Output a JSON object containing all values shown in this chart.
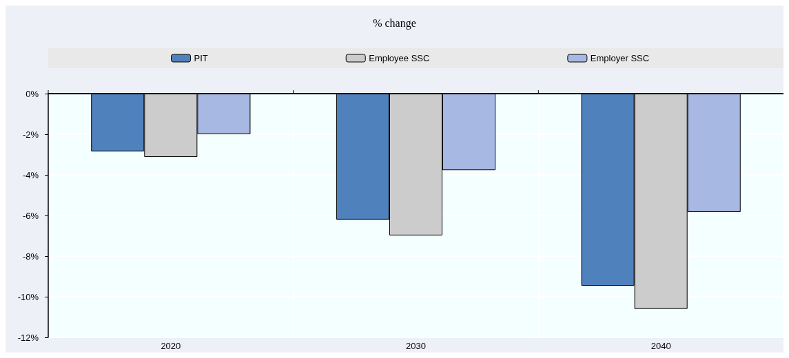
{
  "chart_data": {
    "type": "bar",
    "title": "% change",
    "categories": [
      "2020",
      "2030",
      "2040"
    ],
    "series": [
      {
        "name": "PIT",
        "color": "#4f81bd",
        "values": [
          -2.84,
          -6.2,
          -9.46
        ]
      },
      {
        "name": "Employee SSC",
        "color": "#cccccc",
        "values": [
          -3.12,
          -6.98,
          -10.6
        ]
      },
      {
        "name": "Employer SSC",
        "color": "#a7b9e3",
        "values": [
          -2.0,
          -3.77,
          -5.83
        ]
      }
    ],
    "ylim": [
      -12,
      0
    ],
    "yticks": [
      {
        "value": -12,
        "label": "-12%"
      },
      {
        "value": -10,
        "label": "-10%"
      },
      {
        "value": -8,
        "label": "-8%"
      },
      {
        "value": -6,
        "label": "-6%"
      },
      {
        "value": -4,
        "label": "-4%"
      },
      {
        "value": -2,
        "label": "-2%"
      },
      {
        "value": 0,
        "label": "0%"
      }
    ],
    "grid": true,
    "legend": "top"
  }
}
